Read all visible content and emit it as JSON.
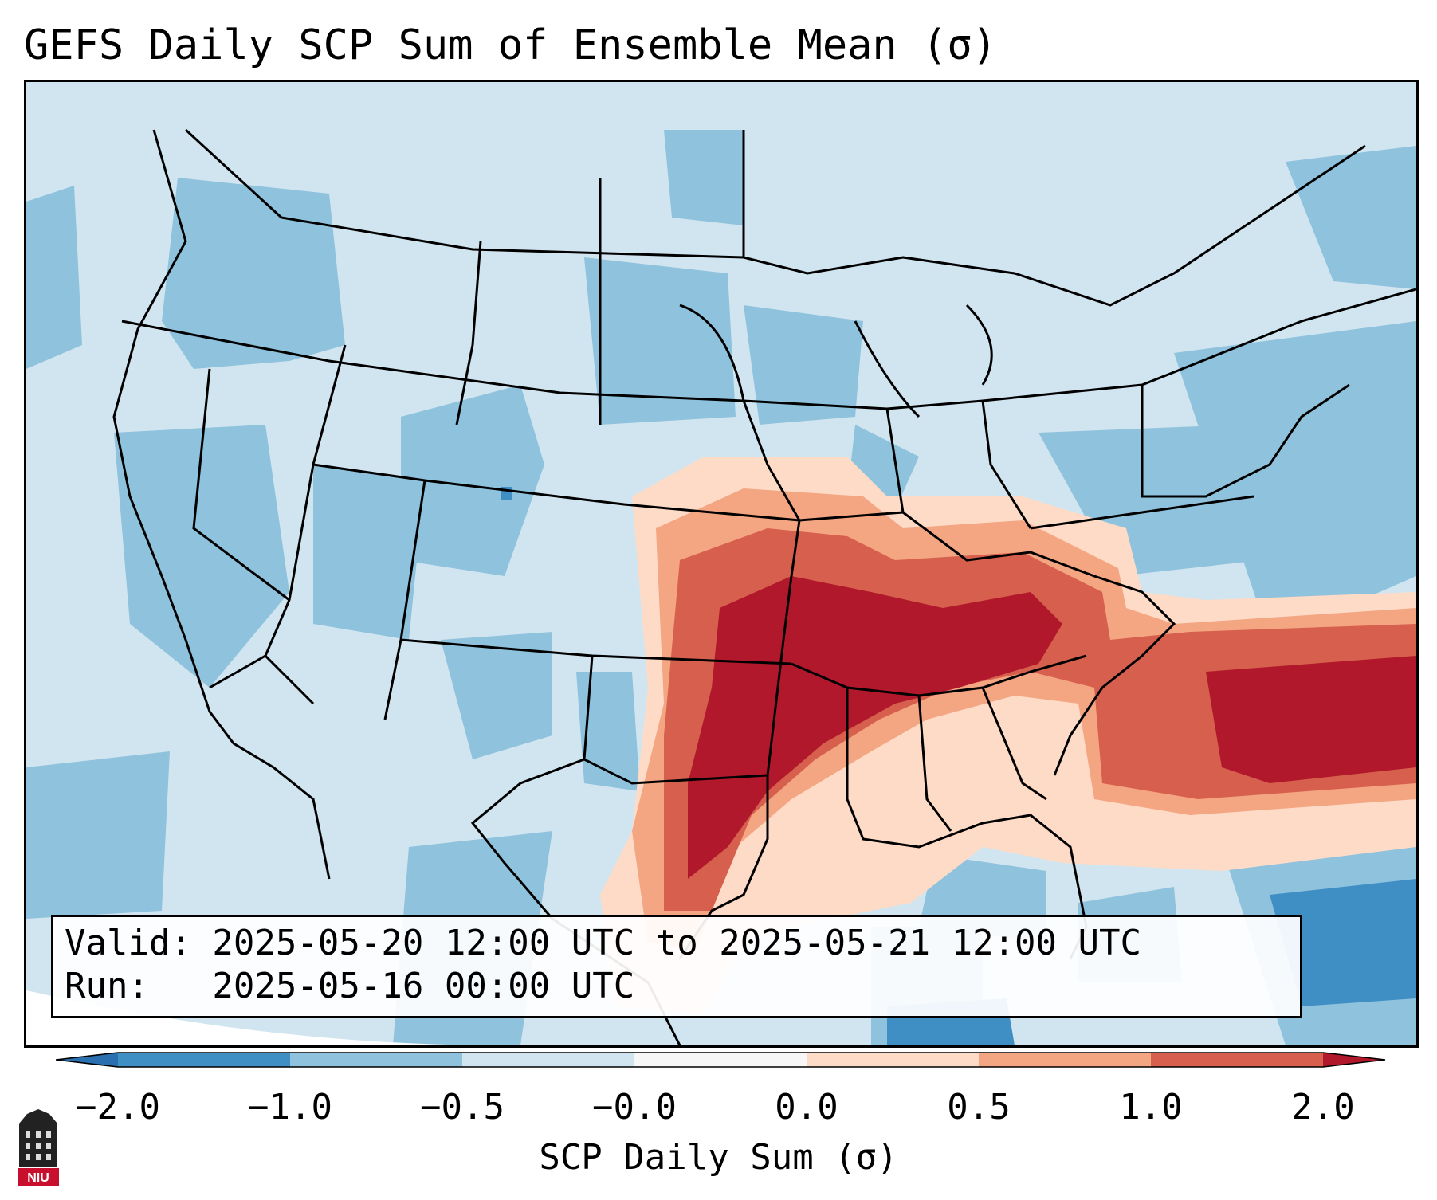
{
  "title": "GEFS Daily SCP Sum of Ensemble Mean (σ)",
  "info": {
    "valid_line": "Valid: 2025-05-20 12:00 UTC to 2025-05-21 12:00 UTC",
    "run_line": "Run:   2025-05-16 00:00 UTC"
  },
  "colorbar": {
    "label": "SCP Daily Sum (σ)",
    "ticks": [
      "−2.0",
      "−1.0",
      "−0.5",
      "−0.0",
      "0.0",
      "0.5",
      "1.0",
      "2.0"
    ],
    "colors": {
      "lt_neg2": "#2a6fb0",
      "neg2_neg1": "#3f8fc5",
      "neg1_neg05": "#8fc2dd",
      "neg05_0": "#d1e5f0",
      "zero": "#f7f7f7",
      "p0_p05": "#fddbc7",
      "p05_p1": "#f4a582",
      "p1_p2": "#d6604d",
      "gt_p2": "#b2182b"
    }
  },
  "logo": {
    "text": "NIU"
  }
}
